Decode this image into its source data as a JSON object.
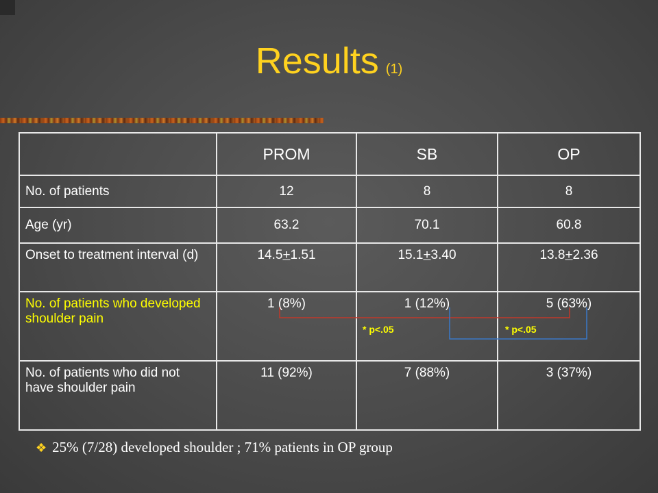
{
  "slide": {
    "title": "Results",
    "title_suffix": "(1)"
  },
  "table": {
    "headers": [
      "",
      "PROM",
      "SB",
      "OP"
    ],
    "rows": [
      {
        "label": "No. of patients",
        "prom": "12",
        "sb": "8",
        "op": "8"
      },
      {
        "label": "Age (yr)",
        "prom": "63.2",
        "sb": "70.1",
        "op": "60.8"
      },
      {
        "label": "Onset to treatment interval (d)",
        "prom": {
          "mean": "14.5",
          "pm": "+",
          "sd": "1.51"
        },
        "sb": {
          "mean": "15.1",
          "pm": "+",
          "sd": "3.40"
        },
        "op": {
          "mean": "13.8",
          "pm": "+",
          "sd": "2.36"
        }
      },
      {
        "label": "No. of patients who developed shoulder pain",
        "prom": "1 (8%)",
        "sb": "1 (12%)",
        "op": "5 (63%)"
      },
      {
        "label": "No. of patients who did not have shoulder pain",
        "prom": "11 (92%)",
        "sb": "7 (88%)",
        "op": "3 (37%)"
      }
    ]
  },
  "annotations": {
    "significance_1": "* p<.05",
    "significance_2": "* p<.05",
    "bracket_colors": {
      "prom_op": "#c0392b",
      "sb_op": "#3a78c8"
    }
  },
  "footnote": {
    "bullet_icon": "diamond-bullet-icon",
    "text": "25% (7/28) developed shoulder ; 71% patients in OP group"
  }
}
